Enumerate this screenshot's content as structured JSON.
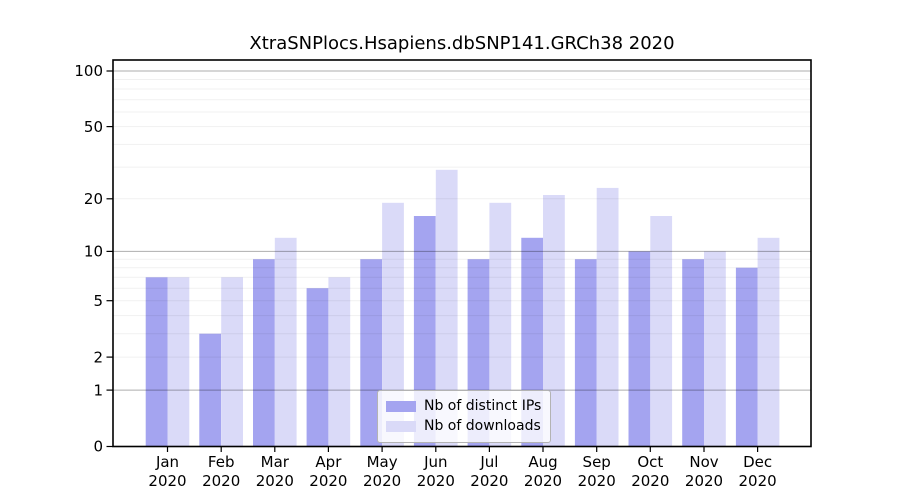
{
  "chart_data": {
    "type": "bar",
    "title": "XtraSNPlocs.Hsapiens.dbSNP141.GRCh38 2020",
    "categories": [
      "Jan",
      "Feb",
      "Mar",
      "Apr",
      "May",
      "Jun",
      "Jul",
      "Aug",
      "Sep",
      "Oct",
      "Nov",
      "Dec"
    ],
    "category_year": "2020",
    "series": [
      {
        "name": "Nb of distinct IPs",
        "color": "#a4a4f0",
        "values": [
          7,
          3,
          9,
          6,
          9,
          16,
          9,
          12,
          9,
          10,
          9,
          8
        ]
      },
      {
        "name": "Nb of downloads",
        "color": "#dadaf8",
        "values": [
          7,
          7,
          12,
          7,
          19,
          29,
          19,
          21,
          23,
          16,
          10,
          12
        ]
      }
    ],
    "yscale": "log1p",
    "ylim": [
      0,
      100
    ],
    "y_ticks": [
      0,
      1,
      2,
      5,
      10,
      20,
      50,
      100
    ],
    "minor_gridlines": [
      2,
      3,
      4,
      5,
      6,
      7,
      8,
      9,
      20,
      30,
      40,
      50,
      60,
      70,
      80,
      90
    ],
    "major_gridlines": [
      1,
      10,
      100
    ],
    "legend_position": "inside-bottom-center",
    "grid": true,
    "colors": {
      "axis": "#000000",
      "grid_minor": "rgba(0,0,0,0.06)",
      "grid_major": "rgba(0,0,0,0.32)",
      "background": "#ffffff"
    }
  }
}
